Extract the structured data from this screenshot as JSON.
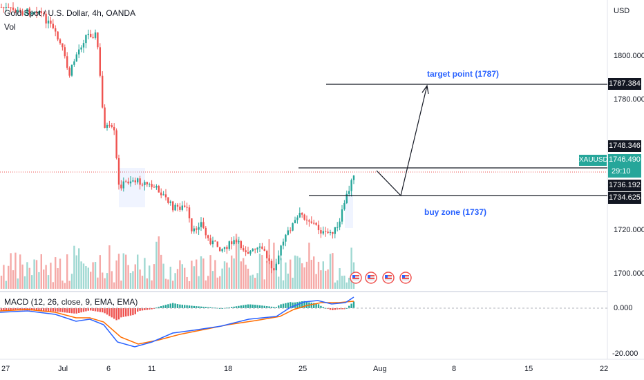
{
  "chart": {
    "title": "Gold Spot / U.S. Dollar, 4h, OANDA",
    "volume_label": "Vol",
    "currency": "USD"
  },
  "price_axis": {
    "ticks": [
      "1800.000",
      "1780.000",
      "1720.000",
      "1700.000"
    ]
  },
  "price_tags": {
    "target": "1787.384",
    "upper": "1748.346",
    "symbol": "XAUUSD",
    "current": "1746.490",
    "countdown": "29:10",
    "mid": "1736.192",
    "lower": "1734.625"
  },
  "annotations": {
    "target": "target point (1787)",
    "buy_zone": "buy zone (1737)"
  },
  "macd": {
    "label": "MACD (12, 26, close, 9, EMA, EMA)",
    "ticks": [
      "0.000",
      "-20.000"
    ]
  },
  "time_axis": {
    "ticks": [
      "27",
      "Jul",
      "6",
      "11",
      "18",
      "25",
      "Aug",
      "8",
      "15",
      "22"
    ]
  },
  "colors": {
    "up": "#26a69a",
    "down": "#ef5350",
    "up_vol": "#9fd8d2",
    "down_vol": "#f5a9a7",
    "macd_line": "#2962ff",
    "signal_line": "#ff6d00",
    "annotation": "#2962ff",
    "current_price": "#ef5350",
    "symbol_tag": "#26a69a"
  }
}
